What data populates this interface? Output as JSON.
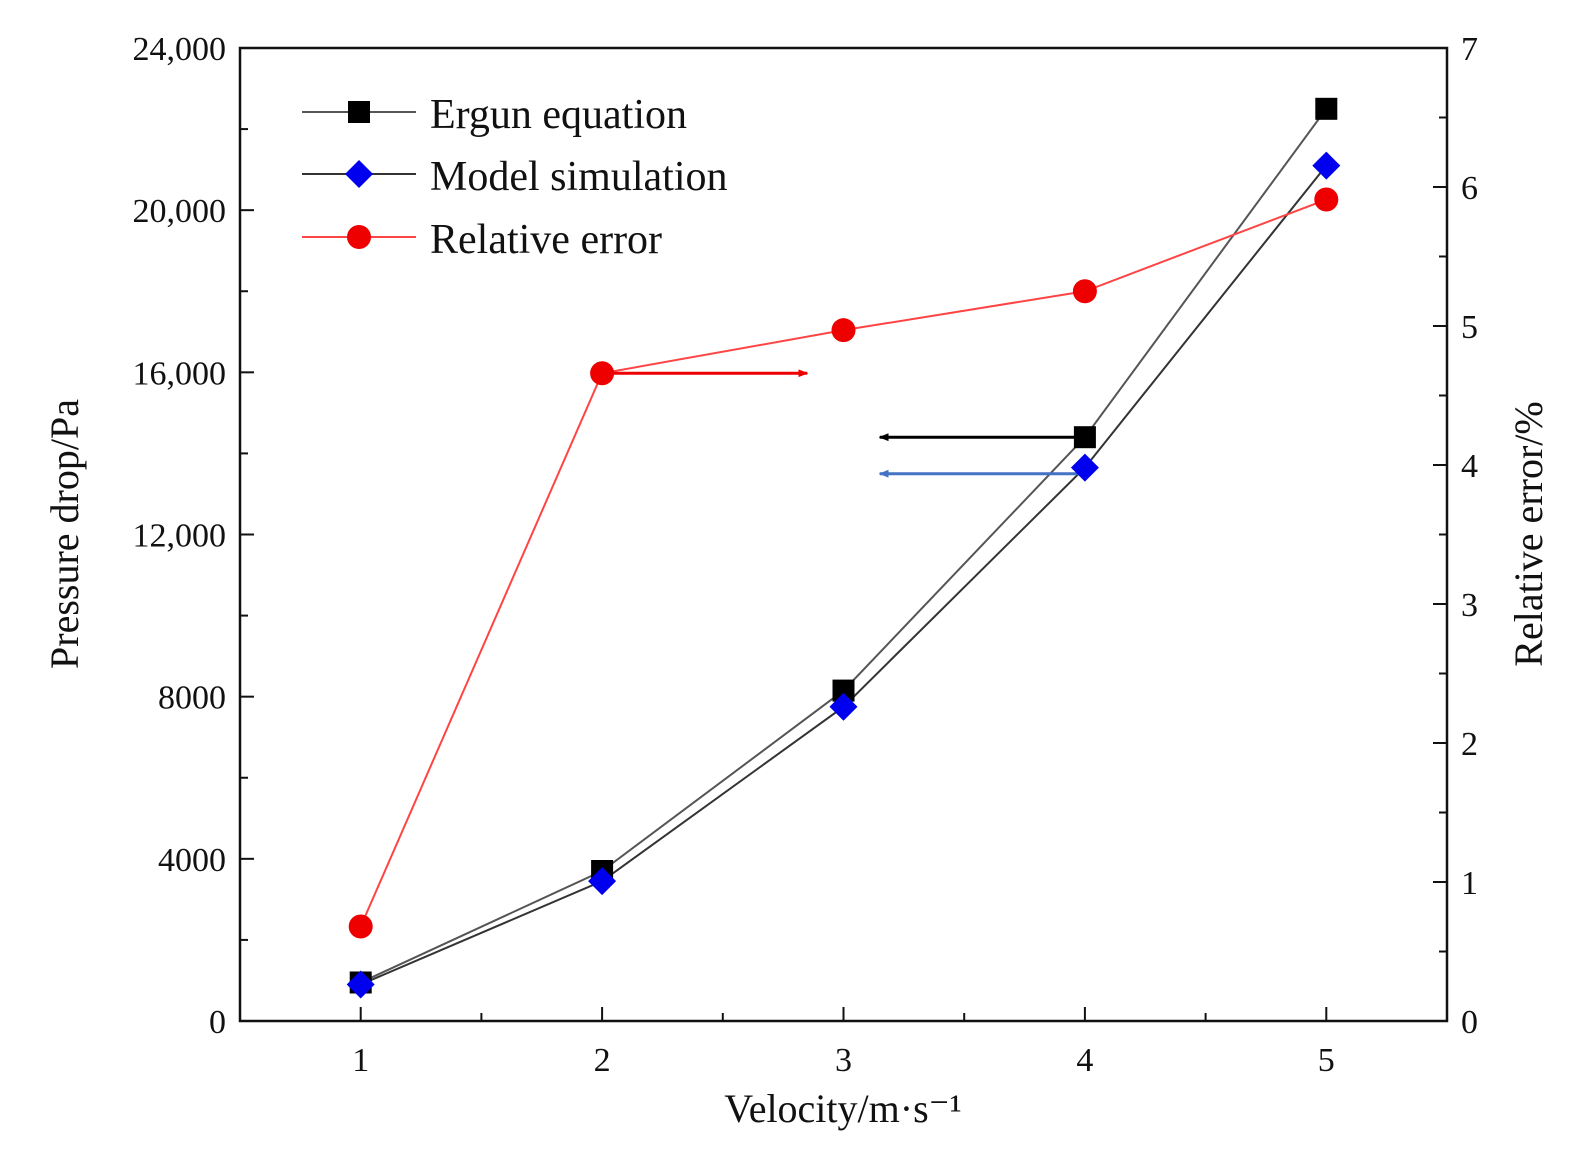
{
  "chart_data": {
    "type": "line",
    "x": [
      1,
      2,
      3,
      4,
      5
    ],
    "xlabel": "Velocity/m·s⁻¹",
    "ylabel_left": "Pressure drop/Pa",
    "ylabel_right": "Relative error/%",
    "xlim": [
      0.5,
      5.5
    ],
    "ylim_left": [
      0,
      24000
    ],
    "ylim_right": [
      0,
      7
    ],
    "x_ticks": [
      "1",
      "2",
      "3",
      "4",
      "5"
    ],
    "y_left_ticks": [
      "0",
      "4000",
      "8000",
      "12,000",
      "16,000",
      "20,000",
      "24,000"
    ],
    "y_right_ticks": [
      "0",
      "1",
      "2",
      "3",
      "4",
      "5",
      "6",
      "7"
    ],
    "legend_position": "top-left",
    "series": [
      {
        "name": "Ergun equation",
        "axis": "left",
        "marker": "square",
        "color": "#000000",
        "line_color": "#555555",
        "values": [
          950,
          3700,
          8150,
          14400,
          22500
        ]
      },
      {
        "name": "Model simulation",
        "axis": "left",
        "marker": "diamond",
        "color": "#0000ee",
        "line_color": "#333333",
        "values": [
          900,
          3450,
          7750,
          13650,
          21100
        ]
      },
      {
        "name": "Relative error",
        "axis": "right",
        "marker": "circle",
        "color": "#ee0000",
        "line_color": "#ff4444",
        "values": [
          0.68,
          4.66,
          4.97,
          5.25,
          5.91
        ]
      }
    ],
    "annotations": [
      {
        "type": "arrow",
        "color": "#ee0000",
        "direction": "right",
        "x_from": 2.0,
        "x_to": 2.85,
        "axis": "right",
        "y": 4.66
      },
      {
        "type": "arrow",
        "color": "#000000",
        "direction": "left",
        "x_from": 4.0,
        "x_to": 3.15,
        "axis": "left",
        "y": 14400
      },
      {
        "type": "arrow",
        "color": "#4472c4",
        "direction": "left",
        "x_from": 4.0,
        "x_to": 3.15,
        "axis": "left",
        "y": 13500
      }
    ]
  }
}
